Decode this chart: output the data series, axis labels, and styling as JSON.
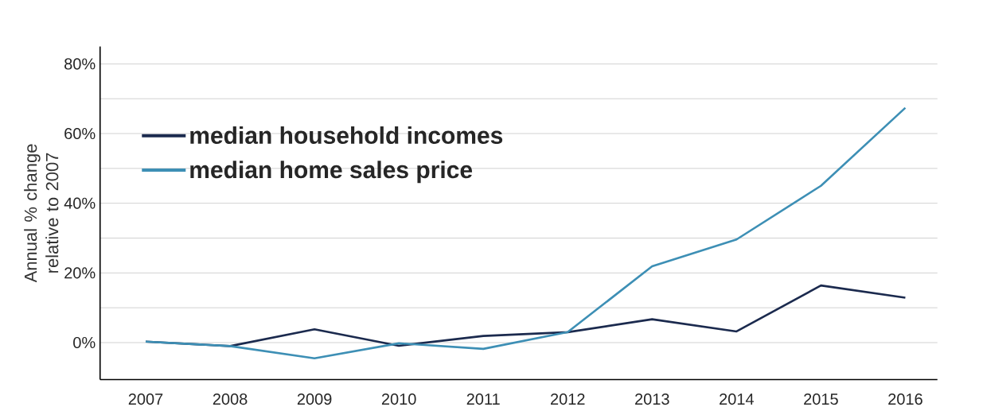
{
  "chart_data": {
    "type": "line",
    "ylabel": "Annual % change relative to 2007",
    "categories": [
      "2007",
      "2008",
      "2009",
      "2010",
      "2011",
      "2012",
      "2013",
      "2014",
      "2015",
      "2016"
    ],
    "series": [
      {
        "name": "median household incomes",
        "color": "#1b2a4e",
        "values": [
          0.3,
          -1,
          3.8,
          -0.9,
          1.9,
          3,
          6.7,
          3.2,
          16.4,
          12.9
        ]
      },
      {
        "name": "median home sales price",
        "color": "#3d8fb5",
        "values": [
          0.3,
          -1,
          -4.5,
          -0.2,
          -1.8,
          3,
          21.9,
          29.6,
          45,
          67.4
        ]
      }
    ],
    "ylim": [
      -10.6,
      85
    ],
    "yticks": [
      {
        "value": 0,
        "label": "0%"
      },
      {
        "value": 10,
        "label": null
      },
      {
        "value": 20,
        "label": "20%"
      },
      {
        "value": 30,
        "label": null
      },
      {
        "value": 40,
        "label": "40%"
      },
      {
        "value": 50,
        "label": null
      },
      {
        "value": 60,
        "label": "60%"
      },
      {
        "value": 70,
        "label": null
      },
      {
        "value": 80,
        "label": "80%"
      }
    ],
    "grid": "y",
    "legend": "top left",
    "marker": "none",
    "line_style": "solid"
  }
}
